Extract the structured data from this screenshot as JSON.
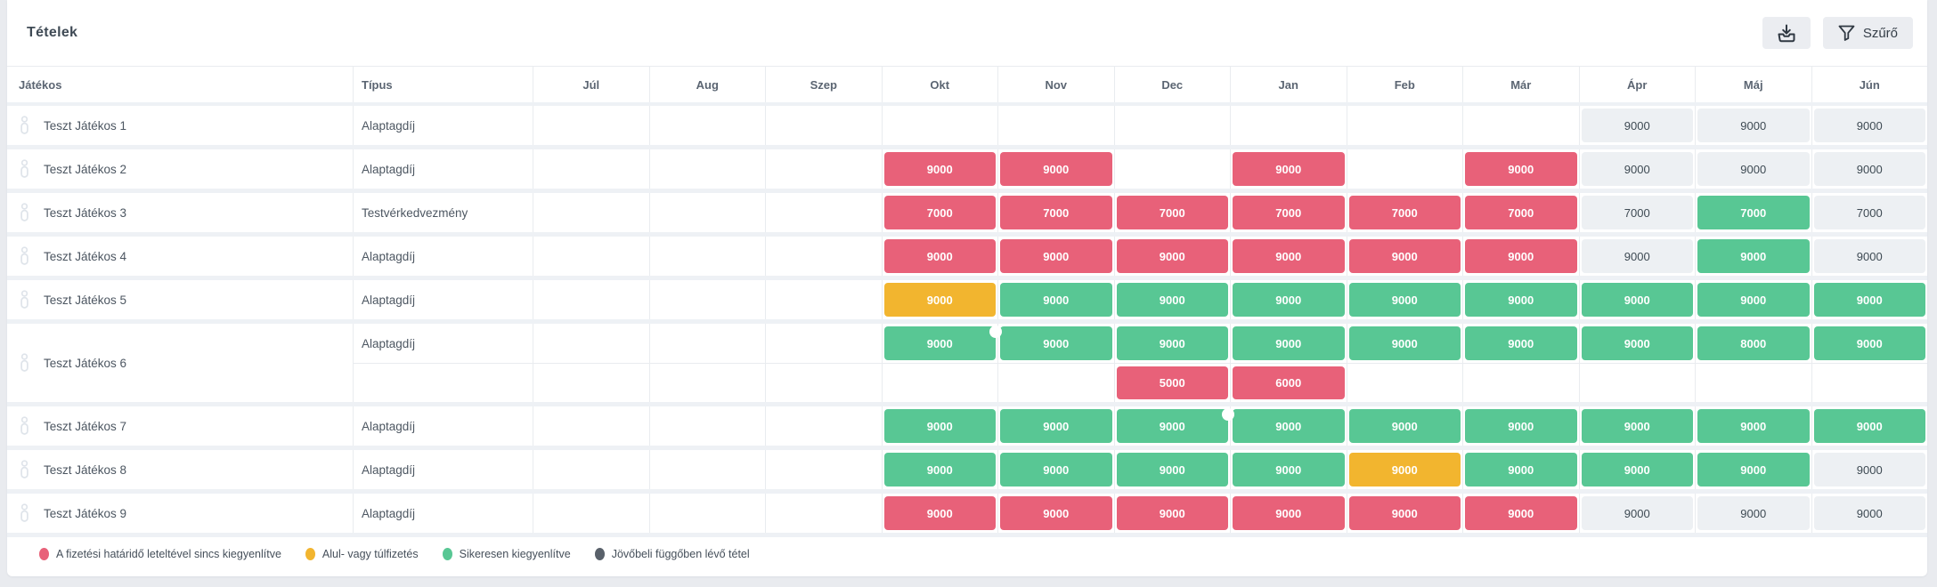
{
  "card": {
    "title": "Tételek",
    "toolbar": {
      "filter_label": "Szűrő"
    }
  },
  "table": {
    "player_header": "Játékos",
    "type_header": "Típus",
    "months": [
      "Júl",
      "Aug",
      "Szep",
      "Okt",
      "Nov",
      "Dec",
      "Jan",
      "Feb",
      "Már",
      "Ápr",
      "Máj",
      "Jún"
    ],
    "rows": [
      {
        "player": "Teszt Játékos 1",
        "lines": [
          {
            "type": "Alaptagdíj",
            "cells": [
              null,
              null,
              null,
              null,
              null,
              null,
              null,
              null,
              null,
              {
                "v": "9000",
                "s": "pending"
              },
              {
                "v": "9000",
                "s": "pending"
              },
              {
                "v": "9000",
                "s": "pending"
              }
            ]
          }
        ]
      },
      {
        "player": "Teszt Játékos 2",
        "lines": [
          {
            "type": "Alaptagdíj",
            "cells": [
              null,
              null,
              null,
              {
                "v": "9000",
                "s": "overdue"
              },
              {
                "v": "9000",
                "s": "overdue"
              },
              null,
              {
                "v": "9000",
                "s": "overdue"
              },
              null,
              {
                "v": "9000",
                "s": "overdue"
              },
              {
                "v": "9000",
                "s": "pending"
              },
              {
                "v": "9000",
                "s": "pending"
              },
              {
                "v": "9000",
                "s": "pending"
              }
            ]
          }
        ]
      },
      {
        "player": "Teszt Játékos 3",
        "lines": [
          {
            "type": "Testvérkedvezmény",
            "cells": [
              null,
              null,
              null,
              {
                "v": "7000",
                "s": "overdue"
              },
              {
                "v": "7000",
                "s": "overdue"
              },
              {
                "v": "7000",
                "s": "overdue"
              },
              {
                "v": "7000",
                "s": "overdue"
              },
              {
                "v": "7000",
                "s": "overdue"
              },
              {
                "v": "7000",
                "s": "overdue"
              },
              {
                "v": "7000",
                "s": "pending"
              },
              {
                "v": "7000",
                "s": "paid"
              },
              {
                "v": "7000",
                "s": "pending"
              }
            ]
          }
        ]
      },
      {
        "player": "Teszt Játékos 4",
        "lines": [
          {
            "type": "Alaptagdíj",
            "cells": [
              null,
              null,
              null,
              {
                "v": "9000",
                "s": "overdue"
              },
              {
                "v": "9000",
                "s": "overdue"
              },
              {
                "v": "9000",
                "s": "overdue"
              },
              {
                "v": "9000",
                "s": "overdue"
              },
              {
                "v": "9000",
                "s": "overdue"
              },
              {
                "v": "9000",
                "s": "overdue"
              },
              {
                "v": "9000",
                "s": "pending"
              },
              {
                "v": "9000",
                "s": "paid"
              },
              {
                "v": "9000",
                "s": "pending"
              }
            ]
          }
        ]
      },
      {
        "player": "Teszt Játékos 5",
        "lines": [
          {
            "type": "Alaptagdíj",
            "cells": [
              null,
              null,
              null,
              {
                "v": "9000",
                "s": "mispaid"
              },
              {
                "v": "9000",
                "s": "paid"
              },
              {
                "v": "9000",
                "s": "paid"
              },
              {
                "v": "9000",
                "s": "paid"
              },
              {
                "v": "9000",
                "s": "paid"
              },
              {
                "v": "9000",
                "s": "paid"
              },
              {
                "v": "9000",
                "s": "paid"
              },
              {
                "v": "9000",
                "s": "paid"
              },
              {
                "v": "9000",
                "s": "paid"
              }
            ]
          }
        ]
      },
      {
        "player": "Teszt Játékos 6",
        "lines": [
          {
            "type": "Alaptagdíj",
            "cells": [
              null,
              null,
              null,
              {
                "v": "9000",
                "s": "paid",
                "dot": true
              },
              {
                "v": "9000",
                "s": "paid"
              },
              {
                "v": "9000",
                "s": "paid"
              },
              {
                "v": "9000",
                "s": "paid"
              },
              {
                "v": "9000",
                "s": "paid"
              },
              {
                "v": "9000",
                "s": "paid"
              },
              {
                "v": "9000",
                "s": "paid"
              },
              {
                "v": "8000",
                "s": "paid"
              },
              {
                "v": "9000",
                "s": "paid"
              }
            ]
          },
          {
            "type": "",
            "cells": [
              null,
              null,
              null,
              null,
              null,
              {
                "v": "5000",
                "s": "overdue"
              },
              {
                "v": "6000",
                "s": "overdue"
              },
              null,
              null,
              null,
              null,
              null
            ]
          }
        ]
      },
      {
        "player": "Teszt Játékos 7",
        "lines": [
          {
            "type": "Alaptagdíj",
            "cells": [
              null,
              null,
              null,
              {
                "v": "9000",
                "s": "paid"
              },
              {
                "v": "9000",
                "s": "paid"
              },
              {
                "v": "9000",
                "s": "paid",
                "dot": true
              },
              {
                "v": "9000",
                "s": "paid"
              },
              {
                "v": "9000",
                "s": "paid"
              },
              {
                "v": "9000",
                "s": "paid"
              },
              {
                "v": "9000",
                "s": "paid"
              },
              {
                "v": "9000",
                "s": "paid"
              },
              {
                "v": "9000",
                "s": "paid"
              }
            ]
          }
        ]
      },
      {
        "player": "Teszt Játékos 8",
        "lines": [
          {
            "type": "Alaptagdíj",
            "cells": [
              null,
              null,
              null,
              {
                "v": "9000",
                "s": "paid"
              },
              {
                "v": "9000",
                "s": "paid"
              },
              {
                "v": "9000",
                "s": "paid"
              },
              {
                "v": "9000",
                "s": "paid"
              },
              {
                "v": "9000",
                "s": "mispaid"
              },
              {
                "v": "9000",
                "s": "paid"
              },
              {
                "v": "9000",
                "s": "paid"
              },
              {
                "v": "9000",
                "s": "paid"
              },
              {
                "v": "9000",
                "s": "pending"
              }
            ]
          }
        ]
      },
      {
        "player": "Teszt Játékos 9",
        "lines": [
          {
            "type": "Alaptagdíj",
            "cells": [
              null,
              null,
              null,
              {
                "v": "9000",
                "s": "overdue"
              },
              {
                "v": "9000",
                "s": "overdue"
              },
              {
                "v": "9000",
                "s": "overdue"
              },
              {
                "v": "9000",
                "s": "overdue"
              },
              {
                "v": "9000",
                "s": "overdue"
              },
              {
                "v": "9000",
                "s": "overdue"
              },
              {
                "v": "9000",
                "s": "pending"
              },
              {
                "v": "9000",
                "s": "pending"
              },
              {
                "v": "9000",
                "s": "pending"
              }
            ]
          }
        ]
      }
    ]
  },
  "legend": {
    "items": [
      {
        "label": "A fizetési határidő leteltével sincs kiegyenlítve",
        "status": "overdue"
      },
      {
        "label": "Alul- vagy túlfizetés",
        "status": "mispaid"
      },
      {
        "label": "Sikeresen kiegyenlítve",
        "status": "paid"
      },
      {
        "label": "Jövőbeli függőben lévő tétel",
        "status": "pending_future"
      }
    ]
  },
  "colors": {
    "overdue": "#e86179",
    "mispaid": "#f2b52f",
    "paid": "#58c794",
    "pending_bg": "#edf0f3",
    "pending_dot": "#59616a",
    "page_bg": "#e9ebef",
    "strip": "#eef1f5",
    "divider": "#e9ecef"
  }
}
